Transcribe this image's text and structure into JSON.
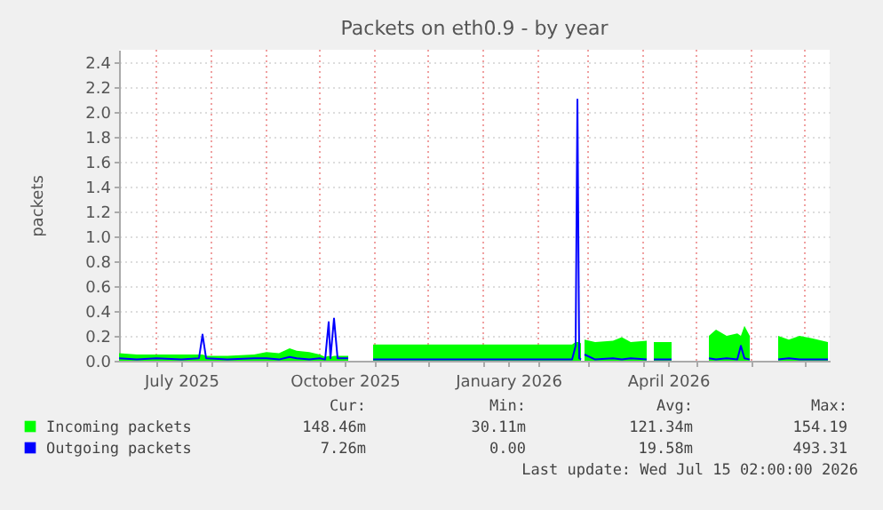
{
  "chart_data": {
    "type": "area",
    "title": "Packets on eth0.9 - by year",
    "ylabel": "packets",
    "x": [
      "2025-06-10",
      "2025-06-20",
      "2025-07-01",
      "2025-07-15",
      "2025-07-25",
      "2025-07-27",
      "2025-07-29",
      "2025-08-10",
      "2025-08-25",
      "2025-09-01",
      "2025-09-08",
      "2025-09-14",
      "2025-09-18",
      "2025-09-25",
      "2025-10-01",
      "2025-10-04",
      "2025-10-06",
      "2025-10-07",
      "2025-10-09",
      "2025-10-11",
      "2025-10-17",
      "2025-10-24",
      "2025-10-31",
      "2025-11-20",
      "2025-12-10",
      "2025-12-31",
      "2026-01-20",
      "2026-02-10",
      "2026-02-20",
      "2026-02-22",
      "2026-02-23",
      "2026-02-24",
      "2026-02-25",
      "2026-02-26",
      "2026-02-27",
      "2026-03-05",
      "2026-03-15",
      "2026-03-20",
      "2026-03-25",
      "2026-04-03",
      "2026-04-05",
      "2026-04-07",
      "2026-04-17",
      "2026-04-28",
      "2026-05-08",
      "2026-05-12",
      "2026-05-18",
      "2026-05-24",
      "2026-05-26",
      "2026-05-28",
      "2026-05-31",
      "2026-06-08",
      "2026-06-16",
      "2026-06-22",
      "2026-06-28",
      "2026-07-05",
      "2026-07-14"
    ],
    "series": [
      {
        "name": "Incoming packets",
        "type": "area",
        "color": "#00ff00",
        "values": [
          0.06,
          0.05,
          0.05,
          0.05,
          0.05,
          0.05,
          0.04,
          0.04,
          0.05,
          0.07,
          0.06,
          0.1,
          0.08,
          0.07,
          0.05,
          0.03,
          0.04,
          0.03,
          0.04,
          0.04,
          0.04,
          null,
          0.13,
          0.13,
          0.13,
          0.13,
          0.13,
          0.13,
          0.13,
          0.15,
          0.15,
          0.15,
          0.14,
          null,
          0.17,
          0.15,
          0.16,
          0.19,
          0.15,
          0.16,
          null,
          0.15,
          0.15,
          null,
          0.2,
          0.25,
          0.2,
          0.22,
          0.2,
          0.28,
          0.2,
          null,
          0.2,
          0.17,
          0.2,
          0.18,
          0.15
        ]
      },
      {
        "name": "Outgoing packets",
        "type": "line",
        "color": "#0000ff",
        "values": [
          0.02,
          0.01,
          0.02,
          0.01,
          0.02,
          0.21,
          0.02,
          0.01,
          0.02,
          0.02,
          0.01,
          0.03,
          0.02,
          0.01,
          0.02,
          0.01,
          0.31,
          0.02,
          0.34,
          0.02,
          0.02,
          null,
          0.01,
          0.01,
          0.01,
          0.01,
          0.01,
          0.01,
          0.01,
          0.12,
          2.1,
          0.02,
          0.01,
          null,
          0.05,
          0.01,
          0.02,
          0.01,
          0.02,
          0.01,
          null,
          0.01,
          0.01,
          null,
          0.02,
          0.01,
          0.02,
          0.01,
          0.12,
          0.02,
          0.01,
          null,
          0.01,
          0.02,
          0.01,
          0.01,
          0.01
        ]
      }
    ],
    "xlim": [
      "2025-06-10",
      "2026-07-15"
    ],
    "xticks": [
      {
        "value": "2025-07-01",
        "label": null
      },
      {
        "value": "2025-08-01",
        "label": null
      },
      {
        "value": "2025-09-01",
        "label": null
      },
      {
        "value": "2025-10-01",
        "label": null
      },
      {
        "value": "2025-11-01",
        "label": null
      },
      {
        "value": "2025-12-01",
        "label": null
      },
      {
        "value": "2026-01-01",
        "label": null
      },
      {
        "value": "2026-02-01",
        "label": null
      },
      {
        "value": "2026-03-01",
        "label": null
      },
      {
        "value": "2026-04-01",
        "label": null
      },
      {
        "value": "2026-05-01",
        "label": null
      },
      {
        "value": "2026-06-01",
        "label": null
      },
      {
        "value": "2026-07-01",
        "label": null
      },
      {
        "value": "2025-07-15",
        "label": "July 2025"
      },
      {
        "value": "2025-10-15",
        "label": "October 2025"
      },
      {
        "value": "2026-01-15",
        "label": "January 2026"
      },
      {
        "value": "2026-04-15",
        "label": "April 2026"
      }
    ],
    "ylim": [
      0,
      2.5
    ],
    "yticks": [
      {
        "value": 0,
        "label": "0.0"
      },
      {
        "value": 0.2,
        "label": "0.2"
      },
      {
        "value": 0.4,
        "label": "0.4"
      },
      {
        "value": 0.6,
        "label": "0.6"
      },
      {
        "value": 0.8,
        "label": "0.8"
      },
      {
        "value": 1,
        "label": "1.0"
      },
      {
        "value": 1.2,
        "label": "1.2"
      },
      {
        "value": 1.4,
        "label": "1.4"
      },
      {
        "value": 1.6,
        "label": "1.6"
      },
      {
        "value": 1.8,
        "label": "1.8"
      },
      {
        "value": 2,
        "label": "2.0"
      },
      {
        "value": 2.2,
        "label": "2.2"
      },
      {
        "value": 2.4,
        "label": "2.4"
      }
    ],
    "grid": true,
    "legend": "bottom",
    "annotations": [
      "Cur:",
      "Min:",
      "Avg:",
      "Max:",
      "148.46m",
      "30.11m",
      "121.34m",
      "154.19",
      "7.26m",
      "0.00",
      "19.58m",
      "493.31",
      "Last update: Wed Jul 15 02:00:00 2026"
    ]
  }
}
